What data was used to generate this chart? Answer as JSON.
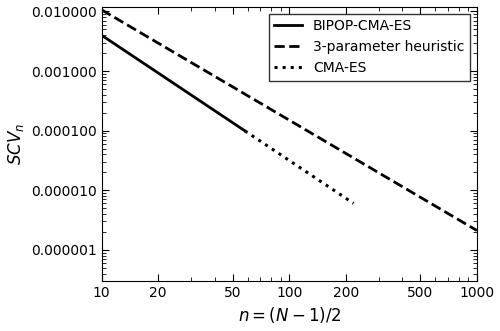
{
  "xlabel": "$n = (N-1)/2$",
  "ylabel": "$SCV_n$",
  "xlim": [
    10,
    1000
  ],
  "ylim": [
    3e-07,
    0.012
  ],
  "x_ticks": [
    10,
    20,
    50,
    100,
    200,
    500,
    1000
  ],
  "y_ticks": [
    0.01,
    0.001,
    0.0001,
    1e-05,
    1e-06
  ],
  "y_tick_labels": [
    "0.01",
    "0.001",
    "0.0001",
    "0.00001",
    "0.000001"
  ],
  "lines": [
    {
      "label": "BIPOP-CMA-ES",
      "style": "solid",
      "color": "#000000",
      "linewidth": 2.0,
      "x_start": 10,
      "x_end": 58,
      "a": 0.5,
      "b": -2.1
    },
    {
      "label": "3-parameter heuristic",
      "style": "dashed",
      "color": "#000000",
      "linewidth": 2.0,
      "x_start": 10,
      "x_end": 1000,
      "a": 0.75,
      "b": -1.85
    },
    {
      "label": "CMA-ES",
      "style": "dotted",
      "color": "#000000",
      "linewidth": 2.2,
      "x_start": 58,
      "x_end": 220,
      "a": 0.5,
      "b": -2.1
    }
  ],
  "legend_loc": "upper right",
  "legend_fontsize": 10,
  "background_color": "#ffffff",
  "figsize": [
    5.0,
    3.31
  ],
  "dpi": 100
}
